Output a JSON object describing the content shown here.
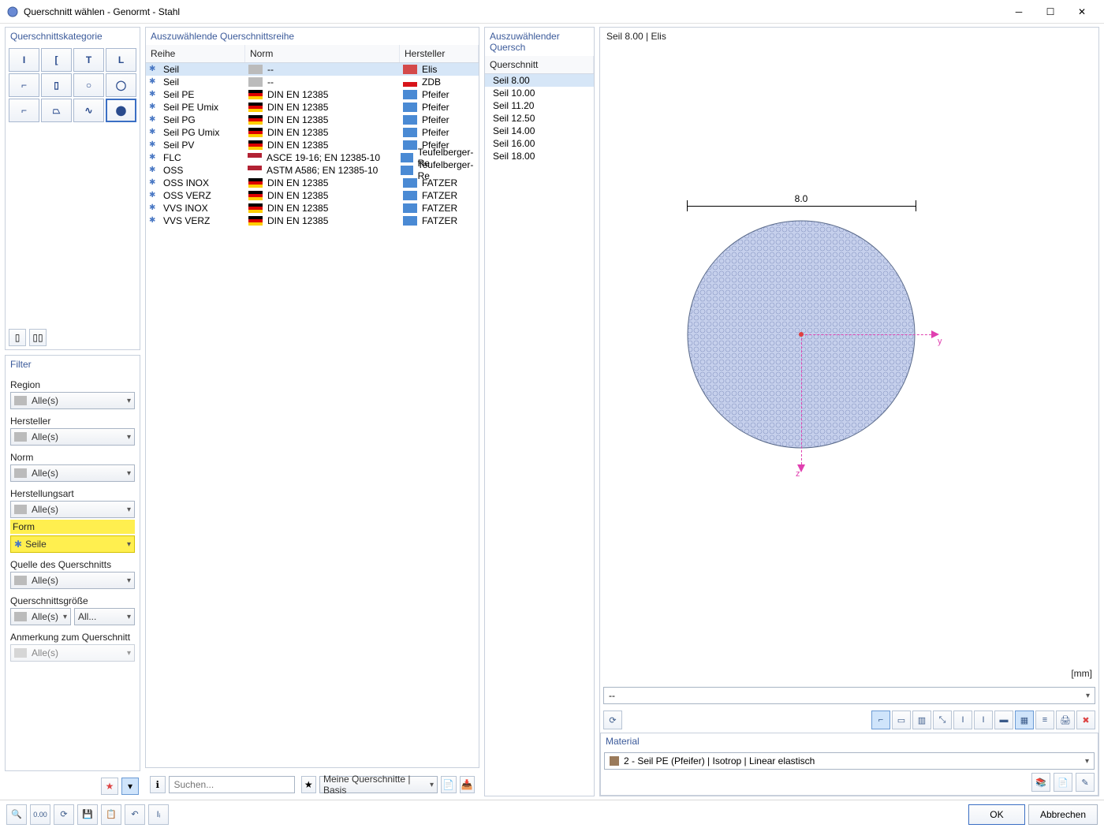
{
  "window": {
    "title": "Querschnitt wählen - Genormt - Stahl"
  },
  "left": {
    "category_title": "Querschnittskategorie",
    "category_glyphs": [
      "I",
      "[",
      "T",
      "L",
      "⌐",
      "▯",
      "○",
      "◯",
      "⌐",
      "⏢",
      "∿",
      "⬤"
    ],
    "selected_category_index": 11,
    "filter_title": "Filter",
    "filters": [
      {
        "label": "Region",
        "value": "Alle(s)",
        "highlight": false
      },
      {
        "label": "Hersteller",
        "value": "Alle(s)",
        "highlight": false
      },
      {
        "label": "Norm",
        "value": "Alle(s)",
        "highlight": false
      },
      {
        "label": "Herstellungsart",
        "value": "Alle(s)",
        "highlight": false
      },
      {
        "label": "Form",
        "value": "Seile",
        "highlight": true
      },
      {
        "label": "Quelle des Querschnitts",
        "value": "Alle(s)",
        "highlight": false
      }
    ],
    "size_label": "Querschnittsgröße",
    "size_value": "Alle(s)",
    "size_all": "All...",
    "note_label": "Anmerkung zum Querschnitt",
    "note_value": "Alle(s)"
  },
  "series": {
    "title": "Auszuwählende Querschnittsreihe",
    "cols": [
      "Reihe",
      "Norm",
      "Hersteller"
    ],
    "rows": [
      {
        "name": "Seil",
        "norm": "--",
        "nflag": "gray",
        "maker": "Elis",
        "mflag": "elis",
        "selected": true
      },
      {
        "name": "Seil",
        "norm": "--",
        "nflag": "gray",
        "maker": "ZDB",
        "mflag": "cz"
      },
      {
        "name": "Seil PE",
        "norm": "DIN EN 12385",
        "nflag": "de",
        "maker": "Pfeifer",
        "mflag": "blue"
      },
      {
        "name": "Seil PE Umix",
        "norm": "DIN EN 12385",
        "nflag": "de",
        "maker": "Pfeifer",
        "mflag": "blue"
      },
      {
        "name": "Seil PG",
        "norm": "DIN EN 12385",
        "nflag": "de",
        "maker": "Pfeifer",
        "mflag": "blue"
      },
      {
        "name": "Seil PG Umix",
        "norm": "DIN EN 12385",
        "nflag": "de",
        "maker": "Pfeifer",
        "mflag": "blue"
      },
      {
        "name": "Seil PV",
        "norm": "DIN EN 12385",
        "nflag": "de",
        "maker": "Pfeifer",
        "mflag": "blue"
      },
      {
        "name": "FLC",
        "norm": "ASCE 19-16; EN 12385-10",
        "nflag": "us",
        "maker": "Teufelberger-Re",
        "mflag": "blue"
      },
      {
        "name": "OSS",
        "norm": "ASTM A586; EN 12385-10",
        "nflag": "us",
        "maker": "Teufelberger-Re",
        "mflag": "blue"
      },
      {
        "name": "OSS INOX",
        "norm": "DIN EN 12385",
        "nflag": "de",
        "maker": "FATZER",
        "mflag": "tri"
      },
      {
        "name": "OSS VERZ",
        "norm": "DIN EN 12385",
        "nflag": "de",
        "maker": "FATZER",
        "mflag": "tri"
      },
      {
        "name": "VVS INOX",
        "norm": "DIN EN 12385",
        "nflag": "de",
        "maker": "FATZER",
        "mflag": "tri"
      },
      {
        "name": "VVS VERZ",
        "norm": "DIN EN 12385",
        "nflag": "de",
        "maker": "FATZER",
        "mflag": "tri"
      }
    ]
  },
  "sizes": {
    "title": "Auszuwählender Quersch",
    "col": "Querschnitt",
    "rows": [
      {
        "name": "Seil 8.00",
        "selected": true
      },
      {
        "name": "Seil 10.00"
      },
      {
        "name": "Seil 11.20"
      },
      {
        "name": "Seil 12.50"
      },
      {
        "name": "Seil 14.00"
      },
      {
        "name": "Seil 16.00"
      },
      {
        "name": "Seil 18.00"
      }
    ]
  },
  "preview": {
    "header": "Seil 8.00 | Elis",
    "dimension": "8.0",
    "unit": "[mm]",
    "y_label": "y",
    "z_label": "z",
    "circle_color": "#c6d0ec",
    "circle_border": "#5a6a8a",
    "axis_color": "#e040b0",
    "dropdown1": "--",
    "material_title": "Material",
    "material_value": "2 - Seil PE (Pfeifer) | Isotrop | Linear elastisch"
  },
  "bottom": {
    "search_placeholder": "Suchen...",
    "my_sections": "Meine Querschnitte | Basis"
  },
  "footer": {
    "ok": "OK",
    "cancel": "Abbrechen"
  }
}
